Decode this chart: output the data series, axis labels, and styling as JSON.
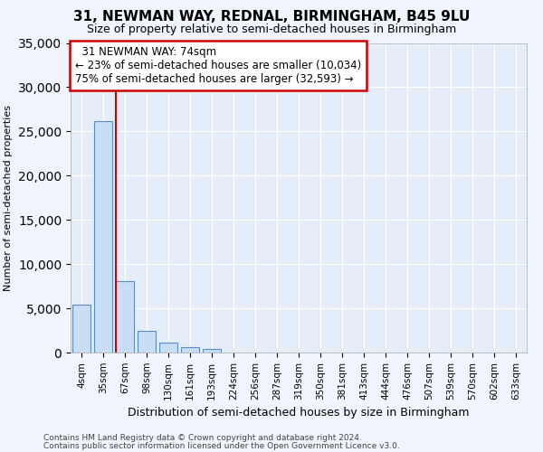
{
  "title": "31, NEWMAN WAY, REDNAL, BIRMINGHAM, B45 9LU",
  "subtitle": "Size of property relative to semi-detached houses in Birmingham",
  "xlabel": "Distribution of semi-detached houses by size in Birmingham",
  "ylabel": "Number of semi-detached properties",
  "categories": [
    "4sqm",
    "35sqm",
    "67sqm",
    "98sqm",
    "130sqm",
    "161sqm",
    "193sqm",
    "224sqm",
    "256sqm",
    "287sqm",
    "319sqm",
    "350sqm",
    "381sqm",
    "413sqm",
    "444sqm",
    "476sqm",
    "507sqm",
    "539sqm",
    "570sqm",
    "602sqm",
    "633sqm"
  ],
  "bar_values": [
    5400,
    26200,
    8100,
    2500,
    1100,
    600,
    400,
    0,
    0,
    0,
    0,
    0,
    0,
    0,
    0,
    0,
    0,
    0,
    0,
    0,
    0
  ],
  "bar_color": "#c9ddf5",
  "bar_edge_color": "#5b8ec4",
  "annotation_title": "31 NEWMAN WAY: 74sqm",
  "annotation_line1": "← 23% of semi-detached houses are smaller (10,034)",
  "annotation_line2": "75% of semi-detached houses are larger (32,593) →",
  "ylim": [
    0,
    35000
  ],
  "yticks": [
    0,
    5000,
    10000,
    15000,
    20000,
    25000,
    30000,
    35000
  ],
  "footer1": "Contains HM Land Registry data © Crown copyright and database right 2024.",
  "footer2": "Contains public sector information licensed under the Open Government Licence v3.0.",
  "bg_color": "#f0f4fc",
  "plot_bg_color": "#e4edf8",
  "annotation_box_edge": "#cc0000",
  "red_line_color": "#cc0000",
  "grid_color": "#ffffff",
  "redline_bar_index": 2
}
